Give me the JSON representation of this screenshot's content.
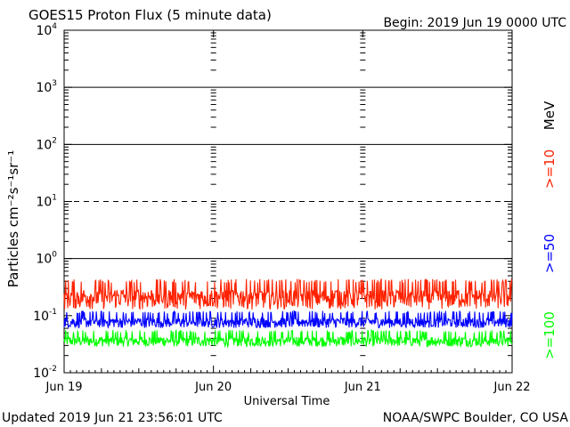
{
  "header": {
    "title": "GOES15 Proton Flux (5 minute data)",
    "begin": "Begin: 2019 Jun 19 0000 UTC"
  },
  "footer": {
    "updated": "Updated 2019 Jun 21 23:56:01 UTC",
    "source": "NOAA/SWPC Boulder, CO USA"
  },
  "colors": {
    "p10": "#ff2200",
    "p50": "#0000ff",
    "p100": "#00ff00",
    "axis": "#000000"
  },
  "chart_data": {
    "type": "line",
    "xlabel": "Universal Time",
    "ylabel": "Particles cm⁻²s⁻¹sr⁻¹",
    "y_scale": "log",
    "ylim_exponents": [
      -2,
      4
    ],
    "y_tick_labels": [
      {
        "base": "10",
        "exp": "-2"
      },
      {
        "base": "10",
        "exp": "-1"
      },
      {
        "base": "10",
        "exp": "0"
      },
      {
        "base": "10",
        "exp": "1"
      },
      {
        "base": "10",
        "exp": "2"
      },
      {
        "base": "10",
        "exp": "3"
      },
      {
        "base": "10",
        "exp": "4"
      }
    ],
    "x_tick_labels": [
      "Jun 19",
      "Jun 20",
      "Jun 21",
      "Jun 22"
    ],
    "xlim_days": [
      0,
      3
    ],
    "grid": {
      "solid_decades": [
        0,
        2,
        3
      ],
      "dashed_decades": [
        1
      ]
    },
    "legend_unit": "MeV",
    "series": [
      {
        "name": ">=10",
        "color": "#ff2200",
        "base": 0.2,
        "spread": 0.18
      },
      {
        "name": ">=50",
        "color": "#0000ff",
        "base": 0.075,
        "spread": 0.035
      },
      {
        "name": ">=100",
        "color": "#00ff00",
        "base": 0.035,
        "spread": 0.016
      }
    ]
  }
}
